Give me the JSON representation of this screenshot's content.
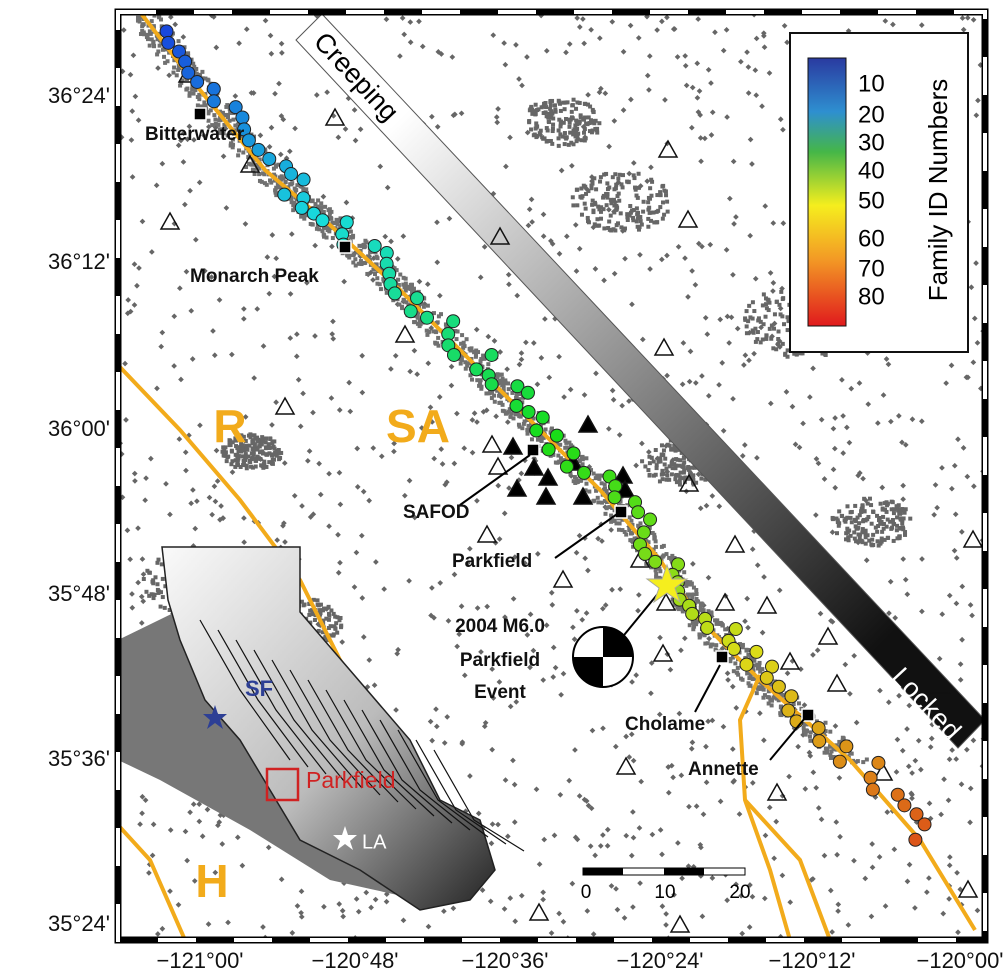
{
  "map": {
    "lat_labels": [
      "36°24'",
      "36°12'",
      "36°00'",
      "35°48'",
      "35°36'",
      "35°24'"
    ],
    "lon_labels": [
      "−121°00'",
      "−120°48'",
      "−120°36'",
      "−120°24'",
      "−120°12'",
      "−120°00'"
    ],
    "colorbar": {
      "title": "Family ID Numbers",
      "labels": [
        10,
        20,
        30,
        40,
        50,
        60,
        70,
        80
      ]
    },
    "scale_bar": {
      "labels": [
        0,
        10,
        20
      ]
    },
    "band_labels": {
      "top": "Creeping",
      "bottom": "Locked"
    },
    "places": {
      "bitterwater": "Bitterwater",
      "monarch_peak": "Monarch Peak",
      "safod": "SAFOD",
      "parkfield": "Parkfield",
      "cholame": "Cholame",
      "annette": "Annette"
    },
    "event_label": [
      "2004 M6.0",
      "Parkfield",
      "Event"
    ],
    "fault_labels": {
      "r": "R",
      "sa": "SA",
      "h": "H"
    },
    "inset": {
      "sf": "SF",
      "parkfield": "Parkfield",
      "la": "LA"
    }
  }
}
